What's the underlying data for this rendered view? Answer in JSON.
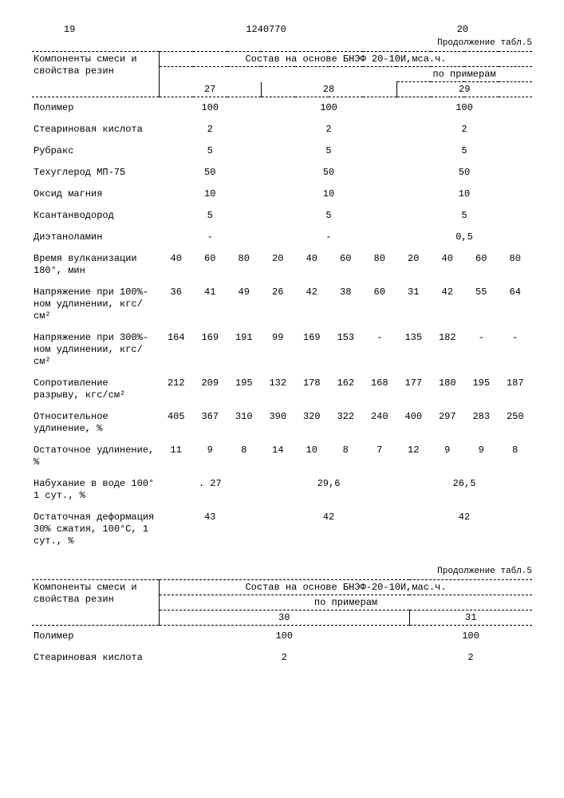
{
  "page_left": "19",
  "doc_num": "1240770",
  "page_right": "20",
  "continuation": "Продолжение табл.5",
  "main_header": "Компоненты смеси и свойства резин",
  "basis_header": "Состав на основе БНЭФ 20-10И,мса.ч.",
  "by_examples": "по примерам",
  "ex_cols": [
    "27",
    "28",
    "29"
  ],
  "rows_single": [
    {
      "label": "Полимер",
      "vals": [
        "100",
        "100",
        "100"
      ]
    },
    {
      "label": "Стеариновая кислота",
      "vals": [
        "2",
        "2",
        "2"
      ]
    },
    {
      "label": "Рубракс",
      "vals": [
        "5",
        "5",
        "5"
      ]
    },
    {
      "label": "Техуглерод МП-75",
      "vals": [
        "50",
        "50",
        "50"
      ]
    },
    {
      "label": "Оксид магния",
      "vals": [
        "10",
        "10",
        "10"
      ]
    },
    {
      "label": "Ксантанводород",
      "vals": [
        "5",
        "5",
        "5"
      ]
    },
    {
      "label": "Диэтаноламин",
      "vals": [
        "-",
        "-",
        "0,5"
      ]
    }
  ],
  "rows_multi": [
    {
      "label": "Время вулканизации 180°, мин",
      "vals": [
        "40",
        "60",
        "80",
        "20",
        "40",
        "60",
        "80",
        "20",
        "40",
        "60",
        "80"
      ]
    },
    {
      "label": "Напряжение при 100%-ном удлинении, кгс/см²",
      "vals": [
        "36",
        "41",
        "49",
        "26",
        "42",
        "38",
        "60",
        "31",
        "42",
        "55",
        "64"
      ]
    },
    {
      "label": "Напряжение при 300%-ном удлинении, кгс/см²",
      "vals": [
        "164",
        "169",
        "191",
        "99",
        "169",
        "153",
        "-",
        "135",
        "182",
        "-",
        "-"
      ]
    },
    {
      "label": "Сопротивление разрыву, кгс/см²",
      "vals": [
        "212",
        "209",
        "195",
        "132",
        "178",
        "162",
        "168",
        "177",
        "180",
        "195",
        "187"
      ]
    },
    {
      "label": "Относительное удлинение, %",
      "vals": [
        "405",
        "367",
        "310",
        "390",
        "320",
        "322",
        "240",
        "400",
        "297",
        "283",
        "250"
      ]
    },
    {
      "label": "Остаточное удлинение, %",
      "vals": [
        "11",
        "9",
        "8",
        "14",
        "10",
        "8",
        "7",
        "12",
        "9",
        "9",
        "8"
      ]
    }
  ],
  "rows_single2": [
    {
      "label": "Набухание в воде 100° 1 сут., %",
      "vals": [
        ". 27",
        "29,6",
        "26,5"
      ]
    },
    {
      "label": "Остаточная деформация 30% сжатия, 100°С, 1 сут., %",
      "vals": [
        "43",
        "42",
        "42"
      ]
    }
  ],
  "t2": {
    "continuation": "Продолжение табл.5",
    "main_header": "Компоненты смеси и свойства резин",
    "basis_header": "Состав на основе БНЭФ-20-10И,мас.ч.",
    "by_examples": "по примерам",
    "ex_cols": [
      "30",
      "31"
    ],
    "rows": [
      {
        "label": "Полимер",
        "vals": [
          "100",
          "100"
        ]
      },
      {
        "label": "Стеариновая кислота",
        "vals": [
          "2",
          "2"
        ]
      }
    ]
  }
}
